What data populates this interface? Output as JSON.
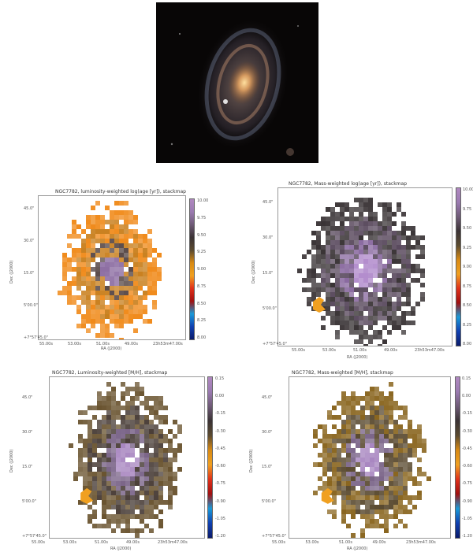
{
  "galaxy_image": {
    "name": "galaxy-photo"
  },
  "panels": [
    {
      "title": "NGC7782, luminosity-weighted log(age [yr]), stackmap",
      "xlabel": "RA (J2000)",
      "ylabel": "Dec (J2000)",
      "x_ticks": [
        "55.00s",
        "53.00s",
        "51.00s",
        "49.00s",
        "23h53m47.00s"
      ],
      "y_ticks": [
        "45.0\"",
        "30.0\"",
        "15.0\"",
        "5'00.0\"",
        "+7°57'45.0\""
      ],
      "cbar_ticks": [
        "10.00",
        "9.75",
        "9.50",
        "9.25",
        "9.00",
        "8.75",
        "8.50",
        "8.25",
        "8.00"
      ],
      "colors": {
        "outer": "#f08a1a",
        "mid": "#c9801e",
        "inner": "#5a4a48",
        "core": "#8a6aa0"
      }
    },
    {
      "title": "NGC7782, Mass-weighted log(age [yr]), stackmap",
      "xlabel": "RA (J2000)",
      "ylabel": "Dec (J2000)",
      "x_ticks": [
        "55.00s",
        "53.00s",
        "51.00s",
        "49.00s",
        "23h53m47.00s"
      ],
      "y_ticks": [
        "45.0\"",
        "30.0\"",
        "15.0\"",
        "5'00.0\"",
        "+7°57'45.0\""
      ],
      "cbar_ticks": [
        "10.00",
        "9.75",
        "9.50",
        "9.25",
        "9.00",
        "8.75",
        "8.50",
        "8.25",
        "8.00"
      ],
      "colors": {
        "outer": "#3a3436",
        "mid": "#5a4a5e",
        "inner": "#8a6aa0",
        "core": "#b28ccc"
      }
    },
    {
      "title": "NGC7782, Luminosity-weighted [M/H], stackmap",
      "xlabel": "RA (J2000)",
      "ylabel": "Dec (J2000)",
      "x_ticks": [
        "55.00s",
        "53.00s",
        "51.00s",
        "49.00s",
        "23h53m47.00s"
      ],
      "y_ticks": [
        "45.0\"",
        "30.0\"",
        "15.0\"",
        "5'00.0\"",
        "+7°57'45.0\""
      ],
      "cbar_ticks": [
        "0.15",
        "0.00",
        "-0.15",
        "-0.30",
        "-0.45",
        "-0.60",
        "-0.75",
        "-0.90",
        "-1.05",
        "-1.20"
      ],
      "colors": {
        "outer": "#6a5430",
        "mid": "#4a3e38",
        "inner": "#7a6488",
        "core": "#a886c0"
      }
    },
    {
      "title": "NGC7782, Mass-weighted [M/H], stackmap",
      "xlabel": "RA (J2000)",
      "ylabel": "Dec (J2000)",
      "x_ticks": [
        "55.00s",
        "53.00s",
        "51.00s",
        "49.00s",
        "23h53m47.00s"
      ],
      "y_ticks": [
        "45.0\"",
        "30.0\"",
        "15.0\"",
        "5'00.0\"",
        "+7°57'45.0\""
      ],
      "cbar_ticks": [
        "0.15",
        "0.00",
        "-0.15",
        "-0.30",
        "-0.45",
        "-0.60",
        "-0.75",
        "-0.90",
        "-1.05",
        "-1.20"
      ],
      "colors": {
        "outer": "#8a6620",
        "mid": "#5a4a30",
        "inner": "#7a6488",
        "core": "#a886c0"
      }
    }
  ]
}
